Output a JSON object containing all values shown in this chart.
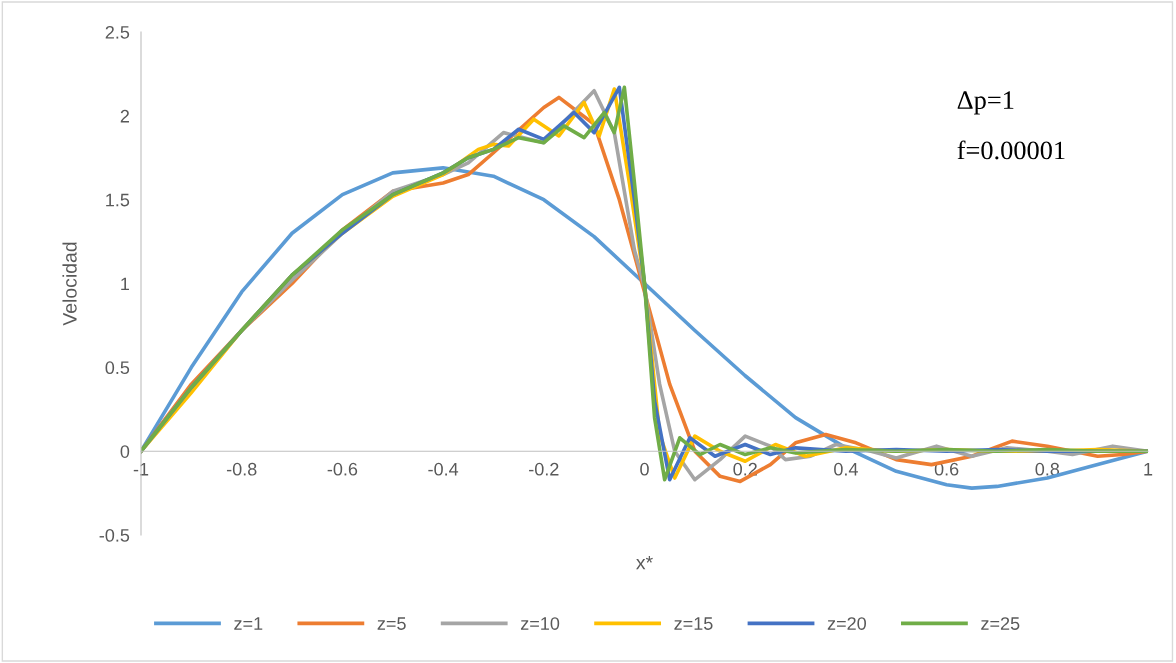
{
  "chart_data": {
    "type": "line",
    "xlabel": "x*",
    "ylabel": "Velocidad",
    "annotations": [
      "Δp=1",
      "f=0.00001"
    ],
    "xlim": [
      -1,
      1
    ],
    "xticks": [
      -1,
      -0.8,
      -0.6,
      -0.4,
      -0.2,
      0,
      0.2,
      0.4,
      0.6,
      0.8,
      1
    ],
    "ylim": [
      -0.5,
      2.5
    ],
    "yticks": [
      -0.5,
      0,
      0.5,
      1,
      1.5,
      2,
      2.5
    ],
    "grid": false,
    "legend": "bottom",
    "marker": "none",
    "line_style": "solid",
    "series": [
      {
        "name": "z=1",
        "color": "#5b9bd5",
        "x": [
          -1,
          -0.9,
          -0.8,
          -0.7,
          -0.6,
          -0.5,
          -0.4,
          -0.3,
          -0.2,
          -0.1,
          0,
          0.1,
          0.2,
          0.3,
          0.4,
          0.5,
          0.6,
          0.65,
          0.7,
          0.8,
          0.9,
          1
        ],
        "values": [
          0,
          0.5,
          0.95,
          1.3,
          1.53,
          1.66,
          1.69,
          1.64,
          1.5,
          1.28,
          1.0,
          0.72,
          0.45,
          0.2,
          0.02,
          -0.12,
          -0.2,
          -0.22,
          -0.21,
          -0.16,
          -0.08,
          0
        ]
      },
      {
        "name": "z=5",
        "color": "#ed7d31",
        "x": [
          -1,
          -0.9,
          -0.8,
          -0.7,
          -0.6,
          -0.5,
          -0.4,
          -0.35,
          -0.3,
          -0.2,
          -0.17,
          -0.1,
          -0.05,
          0,
          0.05,
          0.1,
          0.15,
          0.19,
          0.25,
          0.3,
          0.36,
          0.42,
          0.5,
          0.57,
          0.65,
          0.73,
          0.8,
          0.9,
          0.95,
          1
        ],
        "values": [
          0,
          0.4,
          0.72,
          1.0,
          1.32,
          1.55,
          1.6,
          1.65,
          1.78,
          2.05,
          2.11,
          1.95,
          1.5,
          0.95,
          0.4,
          0.0,
          -0.15,
          -0.18,
          -0.08,
          0.05,
          0.1,
          0.05,
          -0.05,
          -0.08,
          -0.03,
          0.06,
          0.03,
          -0.03,
          -0.02,
          0
        ]
      },
      {
        "name": "z=10",
        "color": "#a5a5a5",
        "x": [
          -1,
          -0.9,
          -0.8,
          -0.7,
          -0.6,
          -0.5,
          -0.4,
          -0.35,
          -0.28,
          -0.2,
          -0.1,
          -0.06,
          -0.02,
          0,
          0.03,
          0.06,
          0.1,
          0.15,
          0.2,
          0.25,
          0.28,
          0.33,
          0.38,
          0.45,
          0.5,
          0.58,
          0.65,
          0.72,
          0.8,
          0.85,
          0.93,
          1
        ],
        "values": [
          0,
          0.38,
          0.72,
          1.02,
          1.3,
          1.55,
          1.65,
          1.72,
          1.9,
          1.84,
          2.15,
          1.9,
          1.2,
          0.98,
          0.4,
          0.0,
          -0.17,
          -0.05,
          0.09,
          0.03,
          -0.05,
          -0.03,
          0.04,
          0.0,
          -0.04,
          0.03,
          -0.03,
          0.02,
          0.0,
          -0.02,
          0.03,
          0
        ]
      },
      {
        "name": "z=15",
        "color": "#ffc000",
        "x": [
          -1,
          -0.9,
          -0.8,
          -0.7,
          -0.6,
          -0.5,
          -0.4,
          -0.33,
          -0.3,
          -0.27,
          -0.22,
          -0.17,
          -0.12,
          -0.09,
          -0.06,
          -0.03,
          0,
          0.03,
          0.06,
          0.1,
          0.15,
          0.2,
          0.26,
          0.32,
          0.4,
          0.5,
          0.6,
          0.7,
          0.8,
          0.9,
          1
        ],
        "values": [
          0,
          0.35,
          0.72,
          1.05,
          1.3,
          1.52,
          1.65,
          1.8,
          1.83,
          1.82,
          1.98,
          1.88,
          2.08,
          1.88,
          2.16,
          1.6,
          1.0,
          0.1,
          -0.16,
          0.09,
          0.0,
          -0.06,
          0.04,
          -0.03,
          0.02,
          0.0,
          0.01,
          0.0,
          0.0,
          0.01,
          0
        ]
      },
      {
        "name": "z=20",
        "color": "#4472c4",
        "x": [
          -1,
          -0.9,
          -0.8,
          -0.7,
          -0.6,
          -0.5,
          -0.4,
          -0.35,
          -0.3,
          -0.25,
          -0.2,
          -0.14,
          -0.1,
          -0.05,
          -0.02,
          0,
          0.02,
          0.05,
          0.09,
          0.14,
          0.2,
          0.25,
          0.3,
          0.4,
          0.5,
          0.6,
          0.7,
          0.8,
          0.9,
          1
        ],
        "values": [
          0,
          0.38,
          0.72,
          1.05,
          1.3,
          1.53,
          1.66,
          1.75,
          1.8,
          1.92,
          1.86,
          2.02,
          1.9,
          2.17,
          1.5,
          1.0,
          0.3,
          -0.17,
          0.08,
          -0.03,
          0.04,
          -0.02,
          0.02,
          0.0,
          0.01,
          0.0,
          0.01,
          0.0,
          0.0,
          0
        ]
      },
      {
        "name": "z=25",
        "color": "#70ad47",
        "x": [
          -1,
          -0.9,
          -0.8,
          -0.7,
          -0.6,
          -0.5,
          -0.4,
          -0.35,
          -0.3,
          -0.25,
          -0.2,
          -0.16,
          -0.12,
          -0.08,
          -0.06,
          -0.04,
          -0.02,
          0,
          0.02,
          0.04,
          0.07,
          0.11,
          0.15,
          0.2,
          0.25,
          0.3,
          0.4,
          0.5,
          0.6,
          0.7,
          0.8,
          0.9,
          1
        ],
        "values": [
          0,
          0.38,
          0.72,
          1.05,
          1.32,
          1.53,
          1.66,
          1.75,
          1.8,
          1.87,
          1.84,
          1.94,
          1.87,
          2.02,
          1.9,
          2.17,
          1.6,
          1.0,
          0.2,
          -0.17,
          0.08,
          -0.02,
          0.04,
          -0.02,
          0.02,
          -0.01,
          0.01,
          0.0,
          0.01,
          0.0,
          0.01,
          0.0,
          0
        ]
      }
    ]
  }
}
